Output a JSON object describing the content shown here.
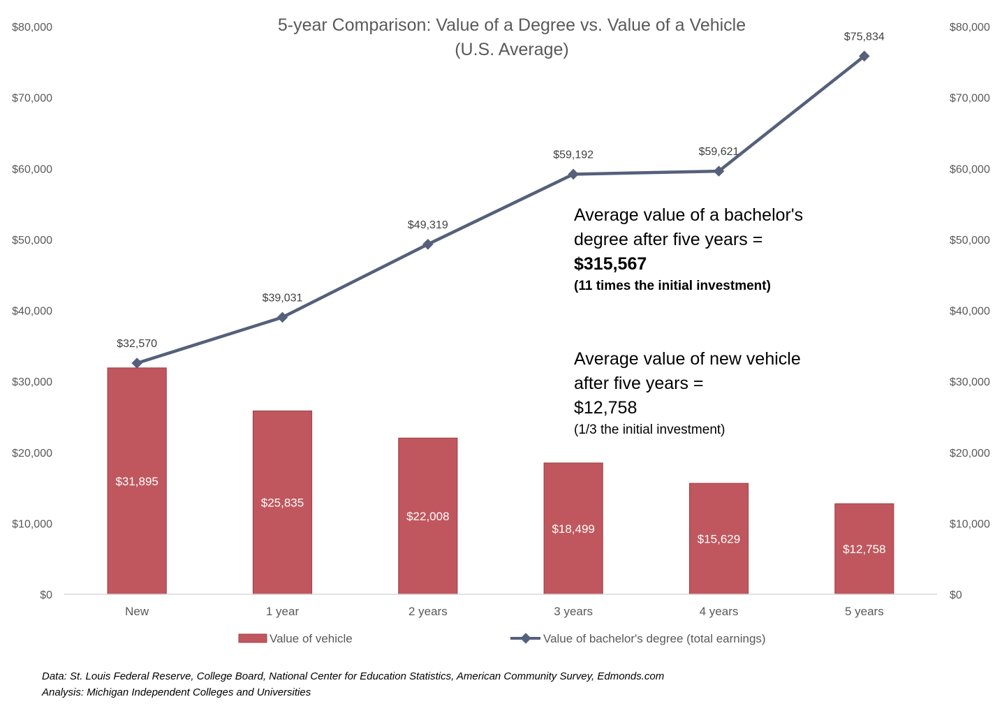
{
  "chart_data": {
    "type": "bar+line",
    "title": "5-year Comparison: Value of a Degree vs. Value of a Vehicle",
    "subtitle": "(U.S. Average)",
    "categories": [
      "New",
      "1 year",
      "2 years",
      "3 years",
      "4 years",
      "5 years"
    ],
    "series": [
      {
        "name": "Value of vehicle",
        "kind": "bar",
        "color": "#c0575e",
        "values": [
          31895,
          25835,
          22008,
          18499,
          15629,
          12758
        ],
        "labels": [
          "$31,895",
          "$25,835",
          "$22,008",
          "$18,499",
          "$15,629",
          "$12,758"
        ]
      },
      {
        "name": "Value of bachelor's degree (total earnings)",
        "kind": "line",
        "color": "#55607a",
        "values": [
          32570,
          39031,
          49319,
          59192,
          59621,
          75834
        ],
        "labels": [
          "$32,570",
          "$39,031",
          "$49,319",
          "$59,192",
          "$59,621",
          "$75,834"
        ]
      }
    ],
    "ylim": [
      0,
      80000
    ],
    "yticks": [
      "$0",
      "$10,000",
      "$20,000",
      "$30,000",
      "$40,000",
      "$50,000",
      "$60,000",
      "$70,000",
      "$80,000"
    ],
    "y2ticks": [
      "$0",
      "$10,000",
      "$20,000",
      "$30,000",
      "$40,000",
      "$50,000",
      "$60,000",
      "$70,000",
      "$80,000"
    ],
    "grid": false,
    "legend_position": "bottom"
  },
  "annotations": {
    "degree": {
      "line1": "Average value of a bachelor's",
      "line2": "degree after five years =",
      "amount": "$315,567",
      "note": "(11 times the initial investment)"
    },
    "vehicle": {
      "line1": "Average value of new vehicle",
      "line2": "after five years =",
      "amount": "$12,758",
      "note": "(1/3 the initial investment)"
    }
  },
  "source": {
    "data": "Data: St. Louis Federal Reserve, College Board, National Center for Education Statistics, American Community Survey, Edmonds.com",
    "analysis": "Analysis: Michigan Independent Colleges and Universities"
  }
}
